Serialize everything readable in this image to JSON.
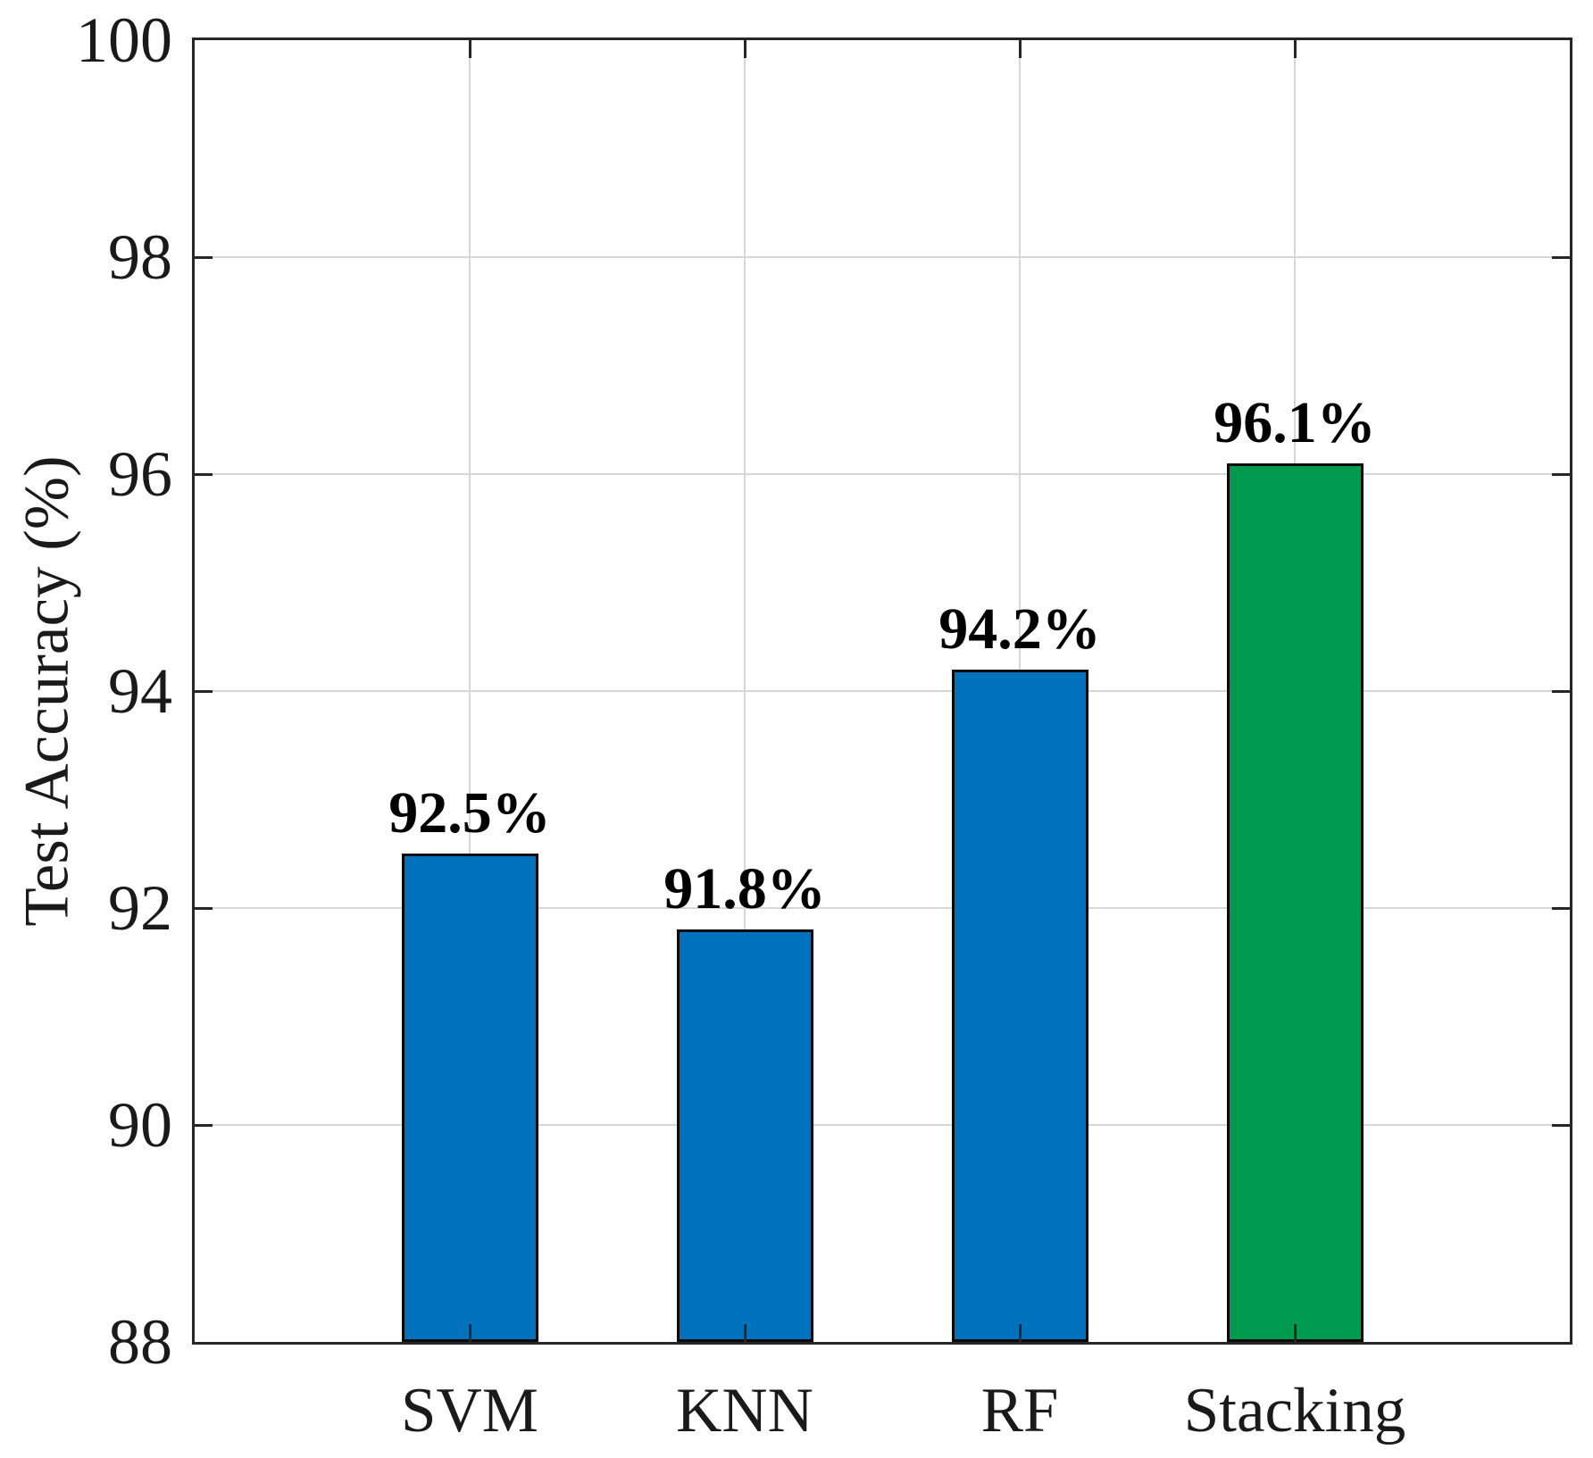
{
  "figure": {
    "background_color": "#ffffff",
    "axis_color": "#262626",
    "grid_color": "#d6d6d6",
    "text_color": "#1a1a1a"
  },
  "chart_data": {
    "type": "bar",
    "title": "",
    "xlabel": "",
    "ylabel": "Test Accuracy (%)",
    "categories": [
      "SVM",
      "KNN",
      "RF",
      "Stacking"
    ],
    "values": [
      92.5,
      91.8,
      94.2,
      96.1
    ],
    "value_labels": [
      "92.5%",
      "91.8%",
      "94.2%",
      "96.1%"
    ],
    "bar_colors": [
      "#0072BD",
      "#0072BD",
      "#0072BD",
      "#009A4E"
    ],
    "bar_edge_color": "#0a0a0a",
    "ylim": [
      88,
      100
    ],
    "yticks": [
      88,
      90,
      92,
      94,
      96,
      98,
      100
    ],
    "ytick_labels": [
      "88",
      "90",
      "92",
      "94",
      "96",
      "98",
      "100"
    ],
    "grid": "on",
    "legend": "none",
    "box": "on",
    "tick_direction": "in"
  }
}
